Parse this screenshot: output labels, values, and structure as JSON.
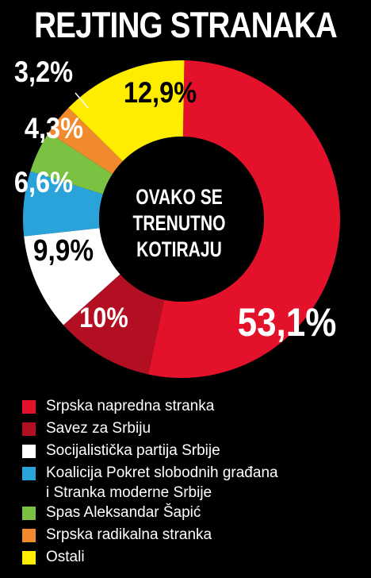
{
  "chart_data": {
    "type": "pie",
    "title": "REJTING STRANAKA",
    "subtitle": "OVAKO SE TRENUTNO KOTIRAJU",
    "subtitle_lines": [
      "OVAKO SE",
      "TRENUTNO",
      "KOTIRAJU"
    ],
    "slices": [
      {
        "name": "Srpska napredna stranka",
        "value": 53.1,
        "label": "53,1%",
        "color": "#e3112a",
        "label_color": "#ffffff"
      },
      {
        "name": "Savez za Srbiju",
        "value": 10.0,
        "label": "10%",
        "color": "#b30f22",
        "label_color": "#ffffff"
      },
      {
        "name": "Socijalistička partija Srbije",
        "value": 9.9,
        "label": "9,9%",
        "color": "#ffffff",
        "label_color": "#000000"
      },
      {
        "name": "Koalicija Pokret slobodnih građana\ni Stranka moderne Srbije",
        "value": 6.6,
        "label": "6,6%",
        "color": "#29a3da",
        "label_color": "#ffffff"
      },
      {
        "name": "Spas Aleksandar Šapić",
        "value": 4.3,
        "label": "4,3%",
        "color": "#7cc242",
        "label_color": "#ffffff"
      },
      {
        "name": "Srpska radikalna stranka",
        "value": 3.2,
        "label": "3,2%",
        "color": "#f1892d",
        "label_color": "#ffffff"
      },
      {
        "name": "Ostali",
        "value": 12.9,
        "label": "12,9%",
        "color": "#ffed00",
        "label_color": "#000000"
      }
    ],
    "legend_placement": "bottom"
  }
}
